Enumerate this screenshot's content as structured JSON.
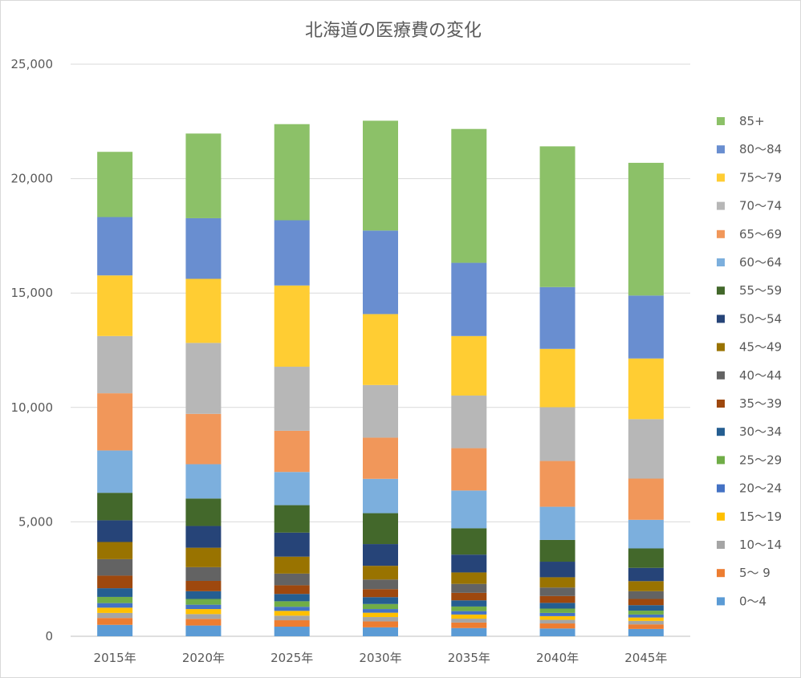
{
  "chart_data": {
    "type": "bar",
    "stacked": true,
    "title": "北海道の医療費の変化",
    "categories": [
      "2015年",
      "2020年",
      "2025年",
      "2030年",
      "2035年",
      "2040年",
      "2045年"
    ],
    "ylim": [
      0,
      25000
    ],
    "yticks": [
      0,
      5000,
      10000,
      15000,
      20000,
      25000
    ],
    "ytick_labels": [
      "0",
      "5,000",
      "10,000",
      "15,000",
      "20,000",
      "25,000"
    ],
    "grid": true,
    "legend_position": "right",
    "series": [
      {
        "name": "0～4",
        "color": "#5b9bd5",
        "values": [
          500,
          470,
          420,
          390,
          360,
          340,
          320
        ]
      },
      {
        "name": " 5～ 9",
        "color": "#ed7d31",
        "values": [
          300,
          290,
          280,
          260,
          240,
          220,
          200
        ]
      },
      {
        "name": "10～14",
        "color": "#a5a5a5",
        "values": [
          220,
          210,
          200,
          190,
          170,
          160,
          150
        ]
      },
      {
        "name": "15～19",
        "color": "#ffc000",
        "values": [
          230,
          220,
          210,
          190,
          180,
          160,
          150
        ]
      },
      {
        "name": "20～24",
        "color": "#4472c4",
        "values": [
          200,
          190,
          180,
          160,
          150,
          140,
          130
        ]
      },
      {
        "name": "25～29",
        "color": "#70ad47",
        "values": [
          270,
          250,
          240,
          220,
          200,
          190,
          170
        ]
      },
      {
        "name": "30～34",
        "color": "#255e91",
        "values": [
          380,
          340,
          320,
          300,
          270,
          250,
          240
        ]
      },
      {
        "name": "35～39",
        "color": "#9e480e",
        "values": [
          550,
          450,
          380,
          350,
          330,
          300,
          270
        ]
      },
      {
        "name": "40～44",
        "color": "#636363",
        "values": [
          720,
          600,
          510,
          420,
          390,
          370,
          340
        ]
      },
      {
        "name": "45～49",
        "color": "#997300",
        "values": [
          750,
          850,
          740,
          600,
          500,
          450,
          440
        ]
      },
      {
        "name": "50～54",
        "color": "#264478",
        "values": [
          950,
          950,
          1050,
          950,
          780,
          680,
          580
        ]
      },
      {
        "name": "55～59",
        "color": "#43682b",
        "values": [
          1200,
          1200,
          1200,
          1350,
          1150,
          950,
          850
        ]
      },
      {
        "name": "60～64",
        "color": "#7cafdd",
        "values": [
          1850,
          1500,
          1450,
          1500,
          1650,
          1450,
          1250
        ]
      },
      {
        "name": "65～69",
        "color": "#f1975a",
        "values": [
          2500,
          2200,
          1800,
          1800,
          1850,
          2000,
          1800
        ]
      },
      {
        "name": "70～74",
        "color": "#b7b7b7",
        "values": [
          2500,
          3100,
          2800,
          2300,
          2300,
          2350,
          2600
        ]
      },
      {
        "name": "75～79",
        "color": "#ffcd33",
        "values": [
          2650,
          2800,
          3550,
          3100,
          2600,
          2550,
          2650
        ]
      },
      {
        "name": "80～84",
        "color": "#698ed0",
        "values": [
          2550,
          2650,
          2850,
          3650,
          3200,
          2700,
          2750
        ]
      },
      {
        "name": "85+",
        "color": "#8cc168",
        "values": [
          2850,
          3700,
          4200,
          4800,
          5850,
          6150,
          5800
        ]
      }
    ]
  }
}
